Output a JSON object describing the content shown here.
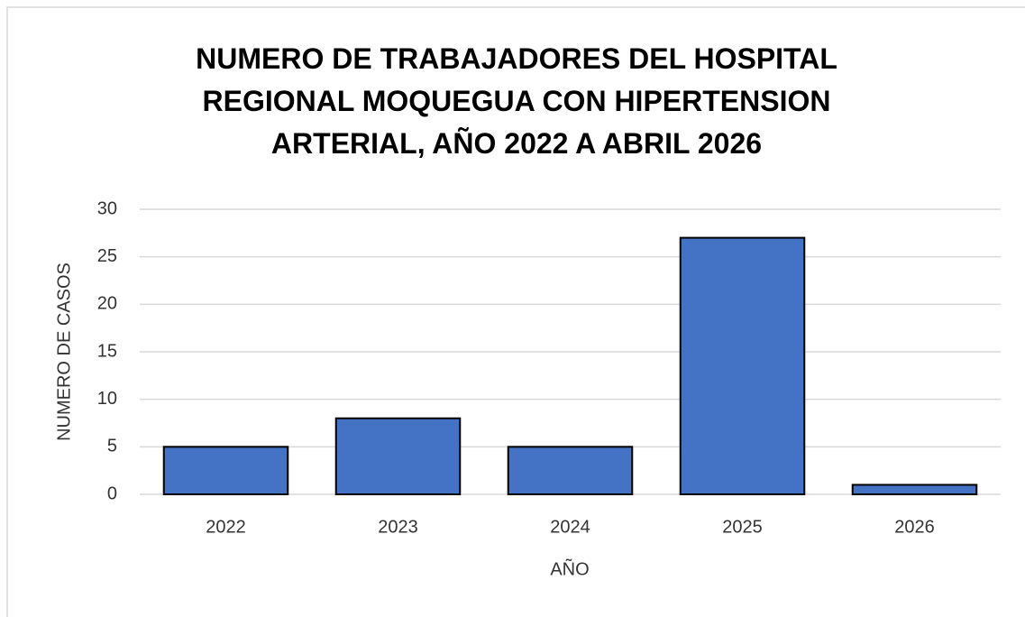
{
  "chart_data": {
    "type": "bar",
    "title": "NUMERO DE TRABAJADORES DEL HOSPITAL REGIONAL MOQUEGUA CON HIPERTENSION ARTERIAL, AÑO 2022 A ABRIL 2026",
    "x_label": "AÑO",
    "y_label": "NUMERO DE CASOS",
    "categories": [
      "2022",
      "2023",
      "2024",
      "2025",
      "2026"
    ],
    "values": [
      5,
      8,
      5,
      27,
      1
    ],
    "color": "#4472c4",
    "ylim": [
      0,
      30
    ],
    "yticks": [
      0,
      5,
      10,
      15,
      20,
      25,
      30
    ],
    "grid": true
  }
}
